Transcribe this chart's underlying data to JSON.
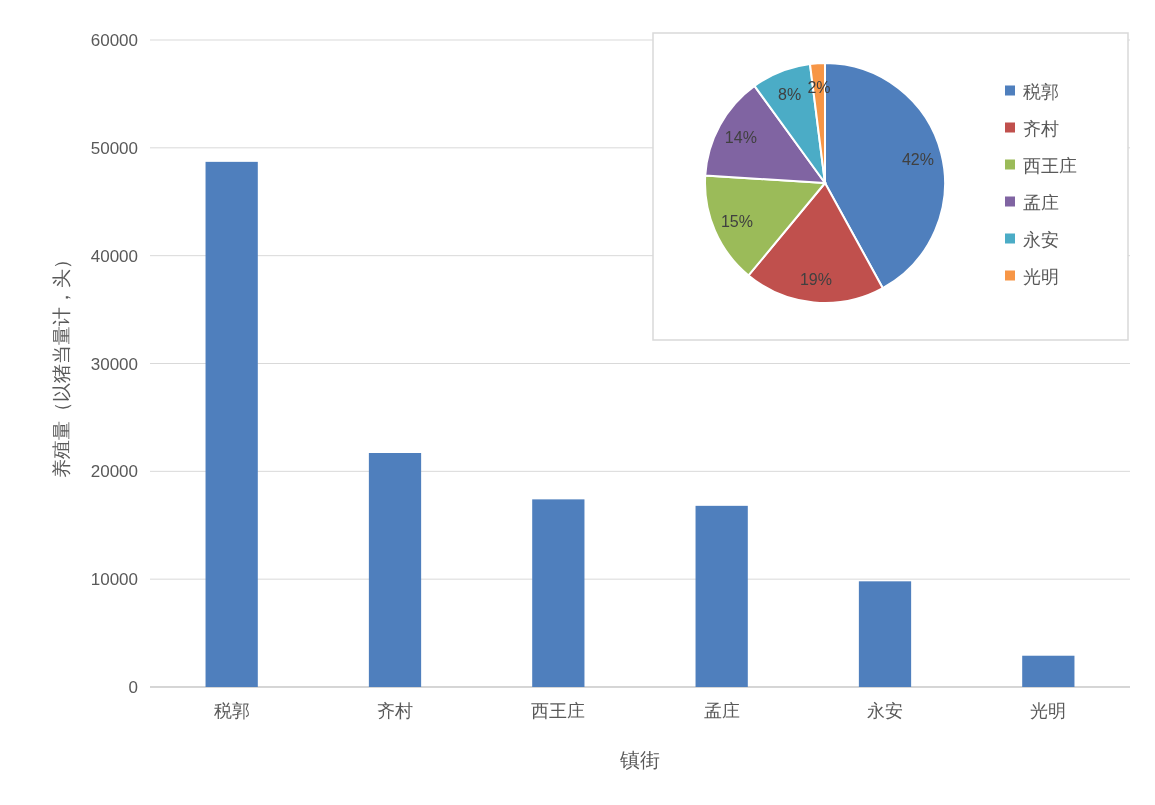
{
  "chart_data": [
    {
      "type": "bar",
      "xlabel": "镇街",
      "ylabel": "养殖量（以猪当量计，头）",
      "categories": [
        "税郭",
        "齐村",
        "西王庄",
        "孟庄",
        "永安",
        "光明"
      ],
      "values": [
        48700,
        21700,
        17400,
        16800,
        9800,
        2900
      ],
      "color": "#4f7fbd",
      "ylim": [
        0,
        60000
      ],
      "yticks": [
        0,
        10000,
        20000,
        30000,
        40000,
        50000,
        60000
      ],
      "grid": "y"
    },
    {
      "type": "pie",
      "categories": [
        "税郭",
        "齐村",
        "西王庄",
        "孟庄",
        "永安",
        "光明"
      ],
      "values": [
        42,
        19,
        15,
        14,
        8,
        2
      ],
      "colors": [
        "#4f7fbd",
        "#c0504d",
        "#9bbb59",
        "#8064a2",
        "#4bacc6",
        "#f79646"
      ],
      "value_labels": [
        "42%",
        "19%",
        "15%",
        "14%",
        "8%",
        "2%"
      ],
      "legend": "right"
    }
  ]
}
